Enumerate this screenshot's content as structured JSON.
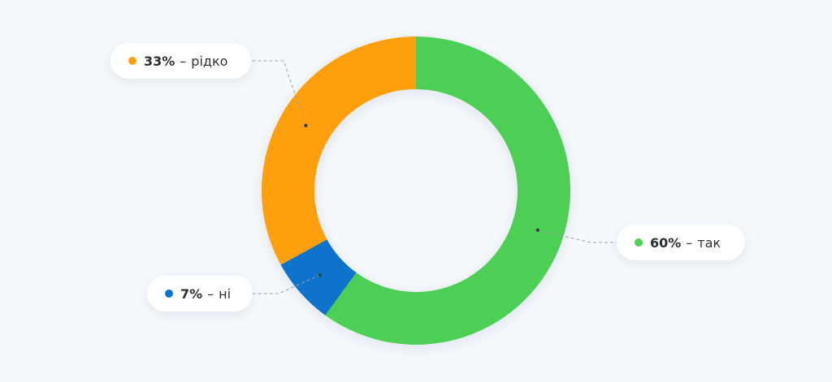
{
  "chart_data": {
    "type": "pie",
    "style": "donut",
    "title": "",
    "start_angle_deg": 0,
    "direction": "clockwise",
    "slices": [
      {
        "value": 60,
        "value_label": "60%",
        "separator": "–",
        "label": "так",
        "color": "#4ecf55"
      },
      {
        "value": 7,
        "value_label": "7%",
        "separator": "–",
        "label": "ні",
        "color": "#0b73cc"
      },
      {
        "value": 33,
        "value_label": "33%",
        "separator": "–",
        "label": "рідко",
        "color": "#ff9f10"
      }
    ]
  },
  "colors": {
    "background": "#f5f9fd",
    "leader_line": "#9aa3ad",
    "label_text": "#2b2f33"
  }
}
